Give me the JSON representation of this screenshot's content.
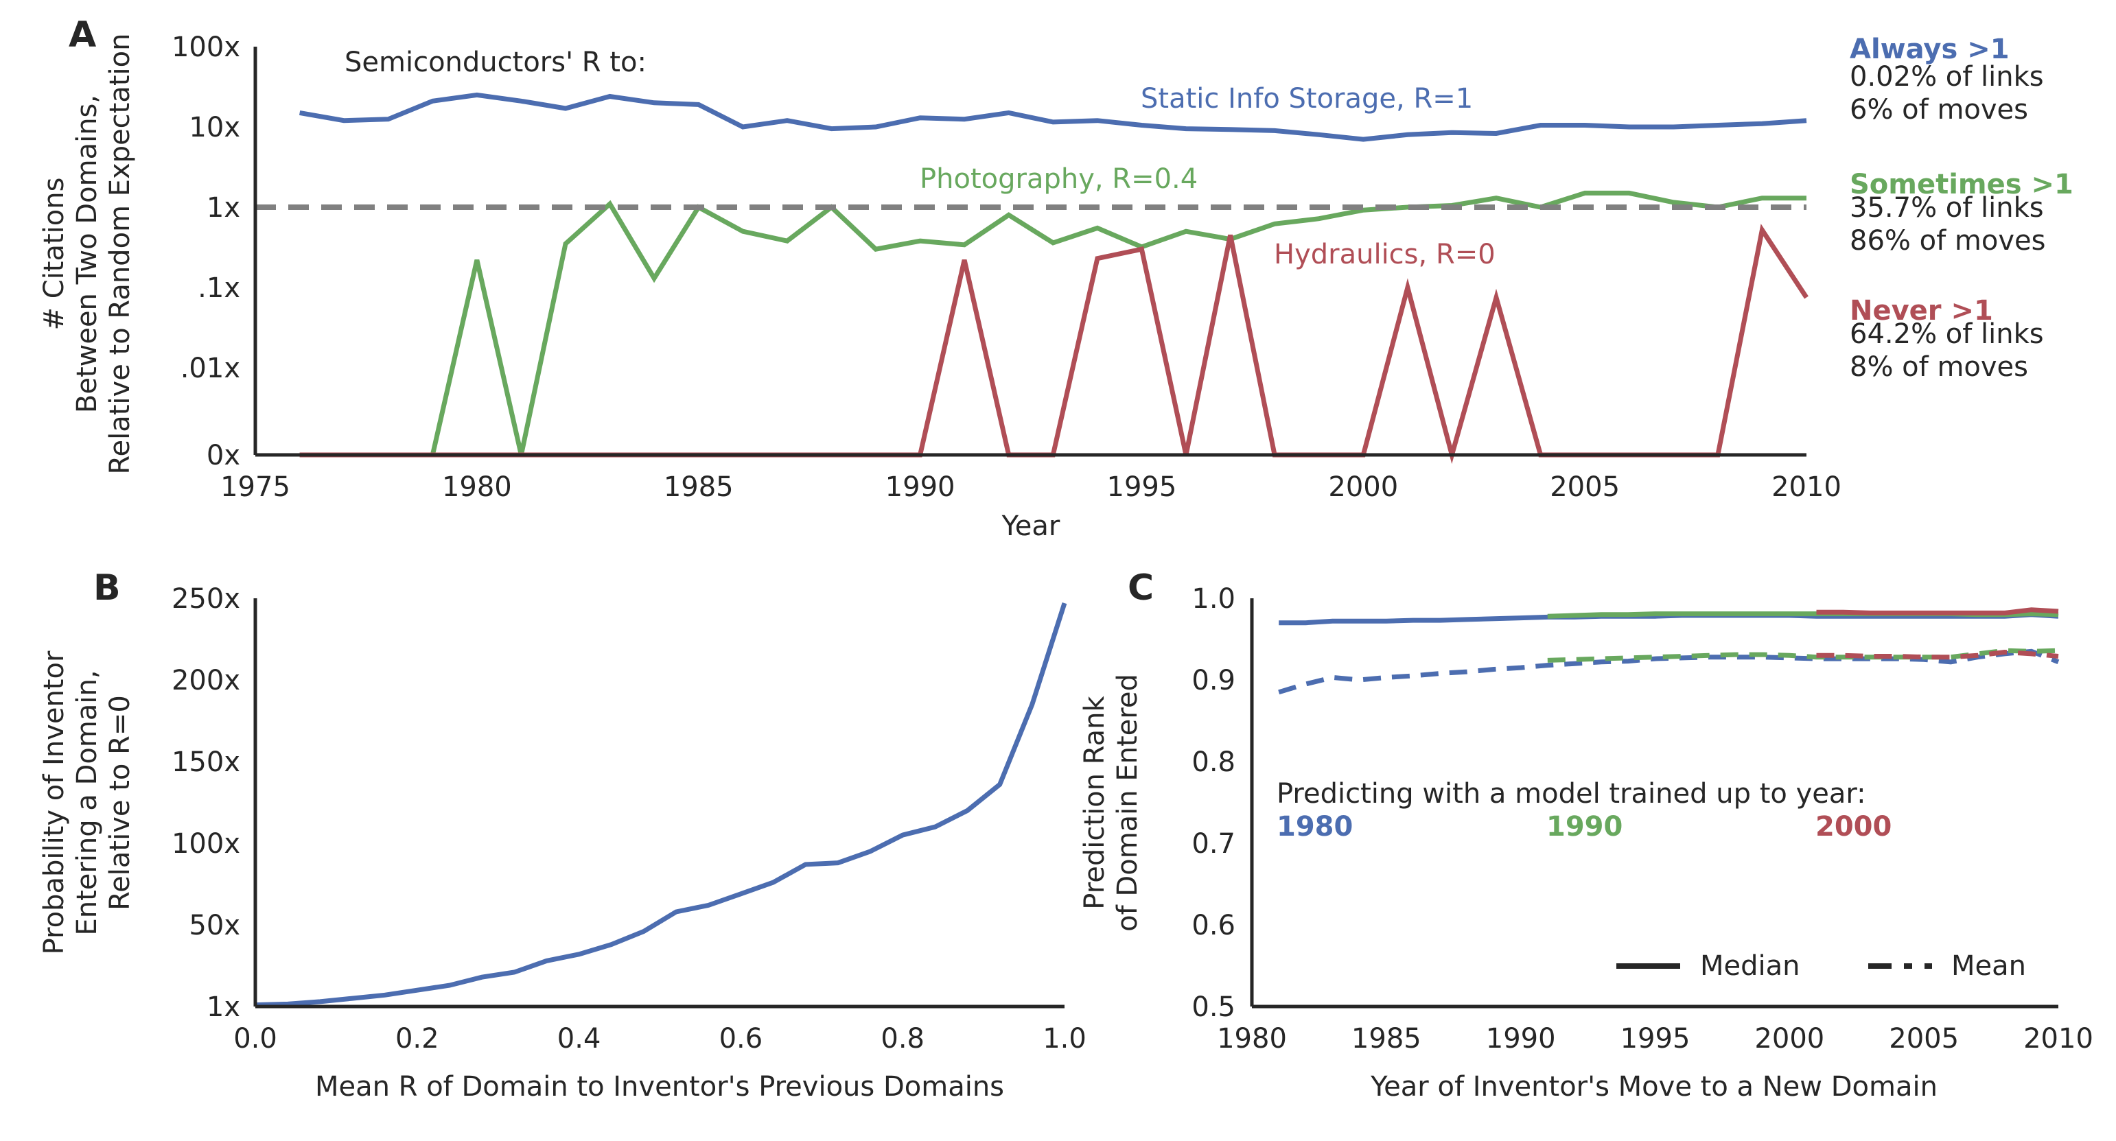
{
  "colors": {
    "blue": "#4c6db0",
    "green": "#68a85e",
    "red": "#b04e56",
    "dashed_ref": "#808080",
    "axis": "#262626"
  },
  "chart_data": [
    {
      "panel": "A",
      "type": "line",
      "xlabel": "Year",
      "ylabel_lines": [
        "# Citations",
        "Between Two Domains,",
        "Relative to Random Expectation"
      ],
      "xlim": [
        1975,
        2010
      ],
      "x_ticks": [
        "1975",
        "1980",
        "1985",
        "1990",
        "1995",
        "2000",
        "2005",
        "2010"
      ],
      "y_scale": "log (0x at bottom)",
      "y_ticks": [
        "100x",
        "10x",
        "1x",
        ".1x",
        ".01x",
        "0x"
      ],
      "y_tick_values": [
        100,
        10,
        1,
        0.1,
        0.01,
        0
      ],
      "reference_line": {
        "y": 1,
        "style": "dashed"
      },
      "header": "Semiconductors' R to:",
      "x": [
        1976,
        1977,
        1978,
        1979,
        1980,
        1981,
        1982,
        1983,
        1984,
        1985,
        1986,
        1987,
        1988,
        1989,
        1990,
        1991,
        1992,
        1993,
        1994,
        1995,
        1996,
        1997,
        1998,
        1999,
        2000,
        2001,
        2002,
        2003,
        2004,
        2005,
        2006,
        2007,
        2008,
        2009,
        2010
      ],
      "series": [
        {
          "name": "Static Info Storage, R=1",
          "color": "blue",
          "values": [
            15,
            12,
            12.5,
            21,
            25,
            21,
            17,
            24,
            20,
            19,
            10,
            12,
            9.5,
            10,
            13,
            12.5,
            15,
            11.5,
            12,
            10.5,
            9.5,
            9.3,
            9,
            8,
            7,
            8,
            8.5,
            8.3,
            10.5,
            10.5,
            10,
            10,
            10.5,
            11,
            12
          ]
        },
        {
          "name": "Photography, R=0.4",
          "color": "green",
          "values": [
            0,
            0,
            0,
            0,
            0.22,
            0,
            0.35,
            1.1,
            0.13,
            1,
            0.5,
            0.38,
            1,
            0.3,
            0.38,
            0.34,
            0.8,
            0.36,
            0.55,
            0.32,
            0.5,
            0.4,
            0.62,
            0.72,
            0.92,
            1,
            1.05,
            1.3,
            1,
            1.5,
            1.5,
            1.15,
            1,
            1.3,
            1.3
          ]
        },
        {
          "name": "Hydraulics, R=0",
          "color": "red",
          "values": [
            0,
            0,
            0,
            0,
            0,
            0,
            0,
            0,
            0,
            0,
            0,
            0,
            0,
            0,
            0,
            0.22,
            0,
            0,
            0.23,
            0.3,
            0,
            0.45,
            0,
            0,
            0,
            0.1,
            0,
            0.075,
            0,
            0,
            0,
            0,
            0,
            0.52,
            0.075
          ]
        }
      ],
      "legend_right": [
        {
          "title": "Always >1",
          "color": "blue",
          "line1": "0.02% of links",
          "line2": "6% of moves"
        },
        {
          "title": "Sometimes >1",
          "color": "green",
          "line1": "35.7% of links",
          "line2": "86% of moves"
        },
        {
          "title": "Never >1",
          "color": "red",
          "line1": "64.2% of links",
          "line2": "8% of moves"
        }
      ]
    },
    {
      "panel": "B",
      "type": "line",
      "xlabel": "Mean R of Domain to Inventor's Previous Domains",
      "ylabel_lines": [
        "Probability of Inventor",
        "Entering a Domain,",
        "Relative to R=0"
      ],
      "xlim": [
        0,
        1
      ],
      "ylim": [
        0,
        250
      ],
      "x_ticks": [
        "0.0",
        "0.2",
        "0.4",
        "0.6",
        "0.8",
        "1.0"
      ],
      "y_ticks": [
        "250x",
        "200x",
        "150x",
        "100x",
        "50x",
        "1x"
      ],
      "y_tick_values": [
        250,
        200,
        150,
        100,
        50,
        0
      ],
      "x": [
        0,
        0.04,
        0.08,
        0.12,
        0.16,
        0.2,
        0.24,
        0.28,
        0.32,
        0.36,
        0.4,
        0.44,
        0.48,
        0.52,
        0.56,
        0.6,
        0.64,
        0.68,
        0.72,
        0.76,
        0.8,
        0.84,
        0.88,
        0.92,
        0.96,
        1.0
      ],
      "series": [
        {
          "color": "blue",
          "values": [
            1,
            1.5,
            3,
            5,
            7,
            10,
            13,
            18,
            21,
            28,
            32,
            38,
            46,
            58,
            62,
            69,
            76,
            87,
            88,
            95,
            105,
            110,
            120,
            136,
            185,
            247
          ]
        }
      ]
    },
    {
      "panel": "C",
      "type": "line",
      "xlabel": "Year of Inventor's Move to a New Domain",
      "ylabel_lines": [
        "Prediction Rank",
        "of Domain Entered"
      ],
      "xlim": [
        1980,
        2010
      ],
      "ylim": [
        0.5,
        1.0
      ],
      "x_ticks": [
        "1980",
        "1985",
        "1990",
        "1995",
        "2000",
        "2005",
        "2010"
      ],
      "y_ticks": [
        "1.0",
        "0.9",
        "0.8",
        "0.7",
        "0.6",
        "0.5"
      ],
      "y_tick_values": [
        1.0,
        0.9,
        0.8,
        0.7,
        0.6,
        0.5
      ],
      "annotation": "Predicting with a model trained up to year:",
      "model_years": [
        {
          "label": "1980",
          "color": "blue"
        },
        {
          "label": "1990",
          "color": "green"
        },
        {
          "label": "2000",
          "color": "red"
        }
      ],
      "legend": [
        {
          "label": "Median",
          "style": "solid"
        },
        {
          "label": "Mean",
          "style": "dashed"
        }
      ],
      "series": [
        {
          "model": "1980",
          "stat": "median",
          "color": "blue",
          "x": [
            1981,
            1982,
            1983,
            1984,
            1985,
            1986,
            1987,
            1988,
            1989,
            1990,
            1991,
            1992,
            1993,
            1994,
            1995,
            1996,
            1997,
            1998,
            1999,
            2000,
            2001,
            2002,
            2003,
            2004,
            2005,
            2006,
            2007,
            2008,
            2009,
            2010
          ],
          "values": [
            0.97,
            0.97,
            0.972,
            0.972,
            0.972,
            0.973,
            0.973,
            0.974,
            0.975,
            0.976,
            0.977,
            0.977,
            0.978,
            0.978,
            0.978,
            0.979,
            0.979,
            0.979,
            0.979,
            0.979,
            0.978,
            0.978,
            0.978,
            0.978,
            0.978,
            0.978,
            0.978,
            0.978,
            0.98,
            0.978
          ]
        },
        {
          "model": "1980",
          "stat": "mean",
          "color": "blue",
          "x": [
            1981,
            1982,
            1983,
            1984,
            1985,
            1986,
            1987,
            1988,
            1989,
            1990,
            1991,
            1992,
            1993,
            1994,
            1995,
            1996,
            1997,
            1998,
            1999,
            2000,
            2001,
            2002,
            2003,
            2004,
            2005,
            2006,
            2007,
            2008,
            2009,
            2010
          ],
          "values": [
            0.885,
            0.895,
            0.903,
            0.9,
            0.903,
            0.905,
            0.908,
            0.91,
            0.913,
            0.915,
            0.918,
            0.92,
            0.922,
            0.923,
            0.926,
            0.927,
            0.928,
            0.928,
            0.928,
            0.927,
            0.926,
            0.926,
            0.926,
            0.926,
            0.925,
            0.922,
            0.928,
            0.932,
            0.935,
            0.922
          ]
        },
        {
          "model": "1990",
          "stat": "median",
          "color": "green",
          "x": [
            1991,
            1992,
            1993,
            1994,
            1995,
            1996,
            1997,
            1998,
            1999,
            2000,
            2001,
            2002,
            2003,
            2004,
            2005,
            2006,
            2007,
            2008,
            2009,
            2010
          ],
          "values": [
            0.978,
            0.979,
            0.98,
            0.98,
            0.981,
            0.981,
            0.981,
            0.981,
            0.981,
            0.981,
            0.981,
            0.981,
            0.981,
            0.981,
            0.981,
            0.981,
            0.98,
            0.98,
            0.981,
            0.98
          ]
        },
        {
          "model": "1990",
          "stat": "mean",
          "color": "green",
          "x": [
            1991,
            1992,
            1993,
            1994,
            1995,
            1996,
            1997,
            1998,
            1999,
            2000,
            2001,
            2002,
            2003,
            2004,
            2005,
            2006,
            2007,
            2008,
            2009,
            2010
          ],
          "values": [
            0.924,
            0.925,
            0.926,
            0.927,
            0.928,
            0.929,
            0.93,
            0.931,
            0.931,
            0.93,
            0.928,
            0.928,
            0.928,
            0.928,
            0.928,
            0.928,
            0.932,
            0.936,
            0.935,
            0.936
          ]
        },
        {
          "model": "2000",
          "stat": "median",
          "color": "red",
          "x": [
            2001,
            2002,
            2003,
            2004,
            2005,
            2006,
            2007,
            2008,
            2009,
            2010
          ],
          "values": [
            0.983,
            0.983,
            0.982,
            0.982,
            0.982,
            0.982,
            0.982,
            0.982,
            0.986,
            0.984
          ]
        },
        {
          "model": "2000",
          "stat": "mean",
          "color": "red",
          "x": [
            2001,
            2002,
            2003,
            2004,
            2005,
            2006,
            2007,
            2008,
            2009,
            2010
          ],
          "values": [
            0.93,
            0.93,
            0.929,
            0.929,
            0.928,
            0.928,
            0.93,
            0.934,
            0.932,
            0.929
          ]
        }
      ]
    }
  ]
}
